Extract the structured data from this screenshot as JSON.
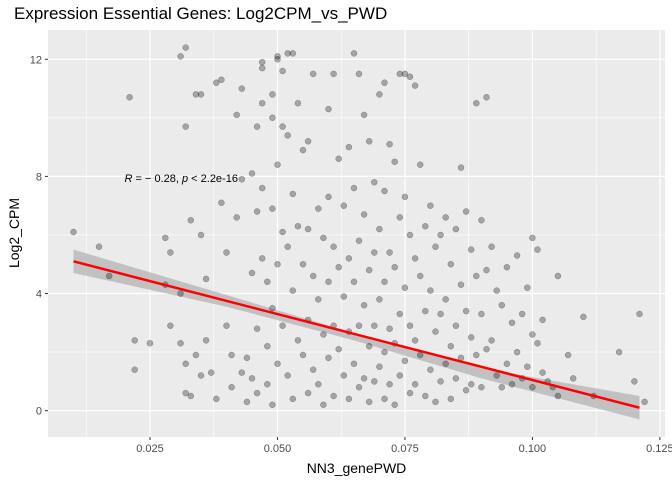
{
  "chart_data": {
    "type": "scatter",
    "title": "Expression Essential Genes: Log2CPM_vs_PWD",
    "xlabel": "NN3_genePWD",
    "ylabel": "Log2_CPM",
    "xlim": [
      0.005,
      0.126
    ],
    "ylim": [
      -0.9,
      13.0
    ],
    "x_ticks": [
      0.025,
      0.05,
      0.075,
      0.1,
      0.125
    ],
    "x_tick_labels": [
      "0.025",
      "0.050",
      "0.075",
      "0.100",
      "0.125"
    ],
    "y_ticks": [
      0,
      4,
      8,
      12
    ],
    "y_tick_labels": [
      "0",
      "4",
      "8",
      "12"
    ],
    "grid": true,
    "legend": "none",
    "annotation": {
      "text_html": "<tspan font-style=\"italic\">R</tspan> = − 0.28, <tspan font-style=\"italic\">p</tspan> &lt; 2.2e-16",
      "x": 0.02,
      "y": 7.95
    },
    "regression": {
      "x_start": 0.01,
      "y_start": 5.1,
      "x_end": 0.121,
      "y_end": 0.1,
      "ci": [
        [
          0.01,
          4.7,
          5.5
        ],
        [
          0.04,
          3.55,
          3.95
        ],
        [
          0.065,
          2.4,
          2.65
        ],
        [
          0.09,
          1.1,
          1.45
        ],
        [
          0.121,
          -0.3,
          0.5
        ]
      ]
    },
    "points": [
      [
        0.01,
        6.1
      ],
      [
        0.015,
        5.6
      ],
      [
        0.017,
        4.6
      ],
      [
        0.021,
        10.7
      ],
      [
        0.022,
        2.4
      ],
      [
        0.025,
        2.3
      ],
      [
        0.022,
        1.4
      ],
      [
        0.028,
        4.3
      ],
      [
        0.028,
        5.9
      ],
      [
        0.029,
        2.9
      ],
      [
        0.029,
        5.4
      ],
      [
        0.031,
        12.1
      ],
      [
        0.032,
        12.4
      ],
      [
        0.032,
        9.7
      ],
      [
        0.033,
        6.5
      ],
      [
        0.034,
        10.8
      ],
      [
        0.035,
        6.0
      ],
      [
        0.035,
        10.8
      ],
      [
        0.036,
        4.5
      ],
      [
        0.031,
        4.0
      ],
      [
        0.031,
        2.3
      ],
      [
        0.032,
        1.6
      ],
      [
        0.032,
        0.6
      ],
      [
        0.033,
        0.5
      ],
      [
        0.034,
        1.9
      ],
      [
        0.035,
        1.2
      ],
      [
        0.036,
        2.4
      ],
      [
        0.037,
        1.3
      ],
      [
        0.038,
        0.4
      ],
      [
        0.038,
        11.2
      ],
      [
        0.039,
        11.3
      ],
      [
        0.039,
        7.1
      ],
      [
        0.04,
        5.4
      ],
      [
        0.04,
        2.9
      ],
      [
        0.041,
        0.8
      ],
      [
        0.041,
        1.9
      ],
      [
        0.042,
        10.1
      ],
      [
        0.042,
        6.6
      ],
      [
        0.043,
        11.0
      ],
      [
        0.043,
        7.9
      ],
      [
        0.043,
        1.3
      ],
      [
        0.044,
        1.8
      ],
      [
        0.044,
        0.3
      ],
      [
        0.045,
        8.1
      ],
      [
        0.045,
        4.7
      ],
      [
        0.045,
        1.1
      ],
      [
        0.046,
        9.7
      ],
      [
        0.046,
        6.8
      ],
      [
        0.046,
        2.8
      ],
      [
        0.046,
        0.6
      ],
      [
        0.047,
        11.7
      ],
      [
        0.047,
        11.9
      ],
      [
        0.047,
        10.5
      ],
      [
        0.047,
        7.6
      ],
      [
        0.047,
        5.2
      ],
      [
        0.048,
        4.4
      ],
      [
        0.048,
        2.2
      ],
      [
        0.048,
        0.9
      ],
      [
        0.049,
        10.0
      ],
      [
        0.049,
        10.8
      ],
      [
        0.049,
        6.9
      ],
      [
        0.049,
        3.5
      ],
      [
        0.049,
        0.2
      ],
      [
        0.05,
        12.0
      ],
      [
        0.05,
        12.1
      ],
      [
        0.05,
        8.4
      ],
      [
        0.05,
        5.0
      ],
      [
        0.05,
        1.6
      ],
      [
        0.051,
        11.6
      ],
      [
        0.051,
        9.7
      ],
      [
        0.051,
        6.1
      ],
      [
        0.051,
        2.9
      ],
      [
        0.052,
        12.2
      ],
      [
        0.052,
        9.4
      ],
      [
        0.052,
        5.6
      ],
      [
        0.052,
        1.2
      ],
      [
        0.053,
        12.2
      ],
      [
        0.053,
        7.4
      ],
      [
        0.053,
        4.1
      ],
      [
        0.053,
        0.4
      ],
      [
        0.054,
        10.5
      ],
      [
        0.054,
        6.3
      ],
      [
        0.054,
        2.4
      ],
      [
        0.055,
        8.9
      ],
      [
        0.055,
        5.0
      ],
      [
        0.055,
        1.9
      ],
      [
        0.056,
        9.2
      ],
      [
        0.056,
        6.2
      ],
      [
        0.056,
        3.1
      ],
      [
        0.056,
        0.6
      ],
      [
        0.057,
        11.5
      ],
      [
        0.057,
        4.6
      ],
      [
        0.057,
        1.4
      ],
      [
        0.058,
        6.9
      ],
      [
        0.058,
        3.8
      ],
      [
        0.058,
        0.9
      ],
      [
        0.059,
        5.9
      ],
      [
        0.059,
        2.6
      ],
      [
        0.059,
        0.2
      ],
      [
        0.06,
        10.3
      ],
      [
        0.06,
        7.3
      ],
      [
        0.06,
        4.4
      ],
      [
        0.06,
        1.8
      ],
      [
        0.061,
        11.5
      ],
      [
        0.061,
        5.6
      ],
      [
        0.061,
        2.9
      ],
      [
        0.061,
        0.5
      ],
      [
        0.062,
        8.6
      ],
      [
        0.062,
        4.9
      ],
      [
        0.062,
        2.1
      ],
      [
        0.063,
        7.0
      ],
      [
        0.063,
        3.9
      ],
      [
        0.063,
        1.2
      ],
      [
        0.064,
        9.0
      ],
      [
        0.064,
        5.2
      ],
      [
        0.064,
        2.7
      ],
      [
        0.064,
        0.4
      ],
      [
        0.065,
        12.2
      ],
      [
        0.065,
        7.6
      ],
      [
        0.065,
        4.4
      ],
      [
        0.065,
        1.6
      ],
      [
        0.066,
        11.5
      ],
      [
        0.066,
        5.8
      ],
      [
        0.066,
        2.9
      ],
      [
        0.066,
        0.8
      ],
      [
        0.067,
        10.1
      ],
      [
        0.067,
        6.7
      ],
      [
        0.067,
        3.6
      ],
      [
        0.067,
        1.1
      ],
      [
        0.068,
        9.2
      ],
      [
        0.068,
        4.8
      ],
      [
        0.068,
        2.2
      ],
      [
        0.068,
        0.3
      ],
      [
        0.069,
        7.8
      ],
      [
        0.069,
        5.4
      ],
      [
        0.069,
        2.9
      ],
      [
        0.069,
        1.0
      ],
      [
        0.07,
        10.8
      ],
      [
        0.07,
        6.2
      ],
      [
        0.07,
        3.8
      ],
      [
        0.07,
        1.5
      ],
      [
        0.071,
        11.2
      ],
      [
        0.071,
        7.5
      ],
      [
        0.071,
        4.4
      ],
      [
        0.071,
        2.0
      ],
      [
        0.071,
        0.4
      ],
      [
        0.072,
        9.1
      ],
      [
        0.072,
        5.4
      ],
      [
        0.072,
        2.8
      ],
      [
        0.072,
        0.9
      ],
      [
        0.073,
        8.5
      ],
      [
        0.073,
        4.9
      ],
      [
        0.073,
        2.3
      ],
      [
        0.073,
        0.2
      ],
      [
        0.074,
        11.5
      ],
      [
        0.074,
        6.6
      ],
      [
        0.074,
        3.3
      ],
      [
        0.074,
        1.2
      ],
      [
        0.075,
        11.5
      ],
      [
        0.075,
        7.3
      ],
      [
        0.075,
        4.2
      ],
      [
        0.075,
        1.7
      ],
      [
        0.076,
        11.4
      ],
      [
        0.076,
        6.0
      ],
      [
        0.076,
        2.9
      ],
      [
        0.076,
        0.6
      ],
      [
        0.077,
        11.1
      ],
      [
        0.077,
        5.2
      ],
      [
        0.077,
        2.4
      ],
      [
        0.077,
        0.9
      ],
      [
        0.078,
        8.4
      ],
      [
        0.078,
        4.6
      ],
      [
        0.078,
        1.9
      ],
      [
        0.079,
        6.3
      ],
      [
        0.079,
        3.4
      ],
      [
        0.079,
        0.5
      ],
      [
        0.08,
        7.0
      ],
      [
        0.08,
        4.1
      ],
      [
        0.08,
        1.4
      ],
      [
        0.081,
        5.6
      ],
      [
        0.081,
        2.7
      ],
      [
        0.081,
        0.3
      ],
      [
        0.082,
        6.0
      ],
      [
        0.082,
        3.3
      ],
      [
        0.082,
        1.0
      ],
      [
        0.083,
        6.6
      ],
      [
        0.083,
        3.8
      ],
      [
        0.083,
        1.6
      ],
      [
        0.084,
        5.0
      ],
      [
        0.084,
        2.2
      ],
      [
        0.084,
        0.4
      ],
      [
        0.085,
        6.2
      ],
      [
        0.085,
        2.9
      ],
      [
        0.085,
        1.1
      ],
      [
        0.086,
        8.3
      ],
      [
        0.086,
        4.3
      ],
      [
        0.086,
        1.8
      ],
      [
        0.087,
        6.8
      ],
      [
        0.087,
        3.4
      ],
      [
        0.087,
        0.7
      ],
      [
        0.088,
        5.5
      ],
      [
        0.088,
        2.5
      ],
      [
        0.088,
        0.9
      ],
      [
        0.089,
        10.5
      ],
      [
        0.089,
        4.6
      ],
      [
        0.089,
        1.9
      ],
      [
        0.09,
        6.5
      ],
      [
        0.09,
        3.3
      ],
      [
        0.09,
        0.8
      ],
      [
        0.091,
        10.7
      ],
      [
        0.091,
        4.8
      ],
      [
        0.091,
        2.1
      ],
      [
        0.092,
        5.6
      ],
      [
        0.092,
        2.4
      ],
      [
        0.093,
        4.1
      ],
      [
        0.093,
        1.2
      ],
      [
        0.094,
        3.6
      ],
      [
        0.094,
        0.8
      ],
      [
        0.095,
        4.9
      ],
      [
        0.095,
        1.6
      ],
      [
        0.096,
        3.0
      ],
      [
        0.096,
        0.9
      ],
      [
        0.097,
        5.3
      ],
      [
        0.097,
        2.0
      ],
      [
        0.098,
        3.3
      ],
      [
        0.098,
        1.1
      ],
      [
        0.099,
        4.2
      ],
      [
        0.099,
        1.5
      ],
      [
        0.1,
        5.9
      ],
      [
        0.1,
        2.6
      ],
      [
        0.1,
        0.8
      ],
      [
        0.101,
        5.5
      ],
      [
        0.101,
        2.3
      ],
      [
        0.102,
        3.1
      ],
      [
        0.102,
        1.3
      ],
      [
        0.103,
        1.0
      ],
      [
        0.104,
        0.8
      ],
      [
        0.105,
        4.6
      ],
      [
        0.105,
        0.5
      ],
      [
        0.107,
        1.9
      ],
      [
        0.108,
        1.1
      ],
      [
        0.11,
        3.2
      ],
      [
        0.112,
        0.5
      ],
      [
        0.117,
        2.0
      ],
      [
        0.121,
        3.3
      ],
      [
        0.122,
        0.3
      ],
      [
        0.12,
        1.0
      ]
    ]
  }
}
